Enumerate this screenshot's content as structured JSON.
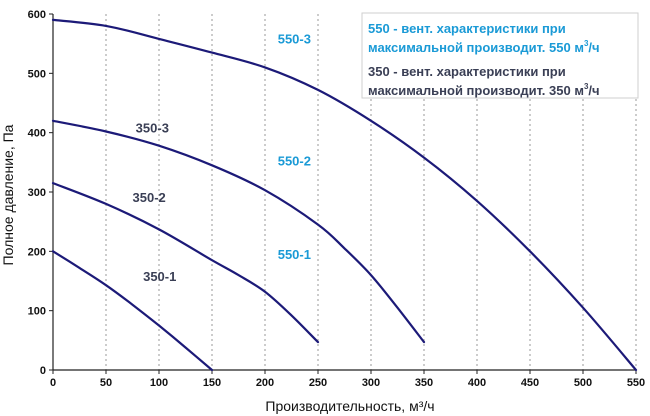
{
  "chart_data": {
    "type": "line",
    "title": "",
    "xlabel": "Производительность, м³/ч",
    "ylabel": "Полное давление, Па",
    "xlim": [
      0,
      550
    ],
    "ylim": [
      0,
      600
    ],
    "xticks": [
      0,
      50,
      100,
      150,
      200,
      250,
      300,
      350,
      400,
      450,
      500,
      550
    ],
    "yticks": [
      0,
      100,
      200,
      300,
      400,
      500,
      600
    ],
    "grid": true,
    "grid_style": "dashed-vertical",
    "legend": [
      {
        "parts": [
          "550 - вент. характеристики при",
          "максимальной производит. 550 м",
          "3",
          "/ч"
        ],
        "color": "#1a9ad6"
      },
      {
        "parts": [
          "350 - вент. характеристики при",
          "максимальной производит. 350 м",
          "3",
          "/ч"
        ],
        "color": "#3a3f55"
      }
    ],
    "line_color": "#1c1a78",
    "series": [
      {
        "name": "350-1",
        "label_color": "#3a3f55",
        "label_at": [
          85,
          150
        ],
        "x": [
          0,
          25,
          50,
          75,
          100,
          125,
          150
        ],
        "y": [
          200,
          172,
          143,
          110,
          75,
          38,
          0
        ]
      },
      {
        "name": "350-2",
        "label_color": "#3a3f55",
        "label_at": [
          75,
          283
        ],
        "x": [
          0,
          50,
          100,
          150,
          175,
          200,
          225,
          250
        ],
        "y": [
          315,
          280,
          237,
          185,
          160,
          132,
          92,
          47
        ]
      },
      {
        "name": "350-3",
        "label_color": "#3a3f55",
        "label_at": [
          78,
          400
        ],
        "x": [
          0,
          50,
          100,
          150,
          200,
          250,
          275,
          300,
          325,
          350
        ],
        "y": [
          420,
          402,
          378,
          345,
          303,
          245,
          205,
          160,
          105,
          47
        ]
      },
      {
        "name": "550-1",
        "label_color": "#1a9ad6",
        "label_at": [
          212,
          187
        ],
        "x": [
          0,
          50,
          100,
          150,
          200,
          250,
          300,
          350,
          400,
          450,
          500,
          550
        ],
        "y": [
          590,
          580,
          558,
          535,
          510,
          472,
          420,
          358,
          285,
          200,
          105,
          0
        ]
      },
      {
        "name": "550-2",
        "label_color": "#1a9ad6",
        "label_at": [
          212,
          345
        ]
      },
      {
        "name": "550-3",
        "label_color": "#1a9ad6",
        "label_at": [
          212,
          550
        ]
      }
    ]
  }
}
